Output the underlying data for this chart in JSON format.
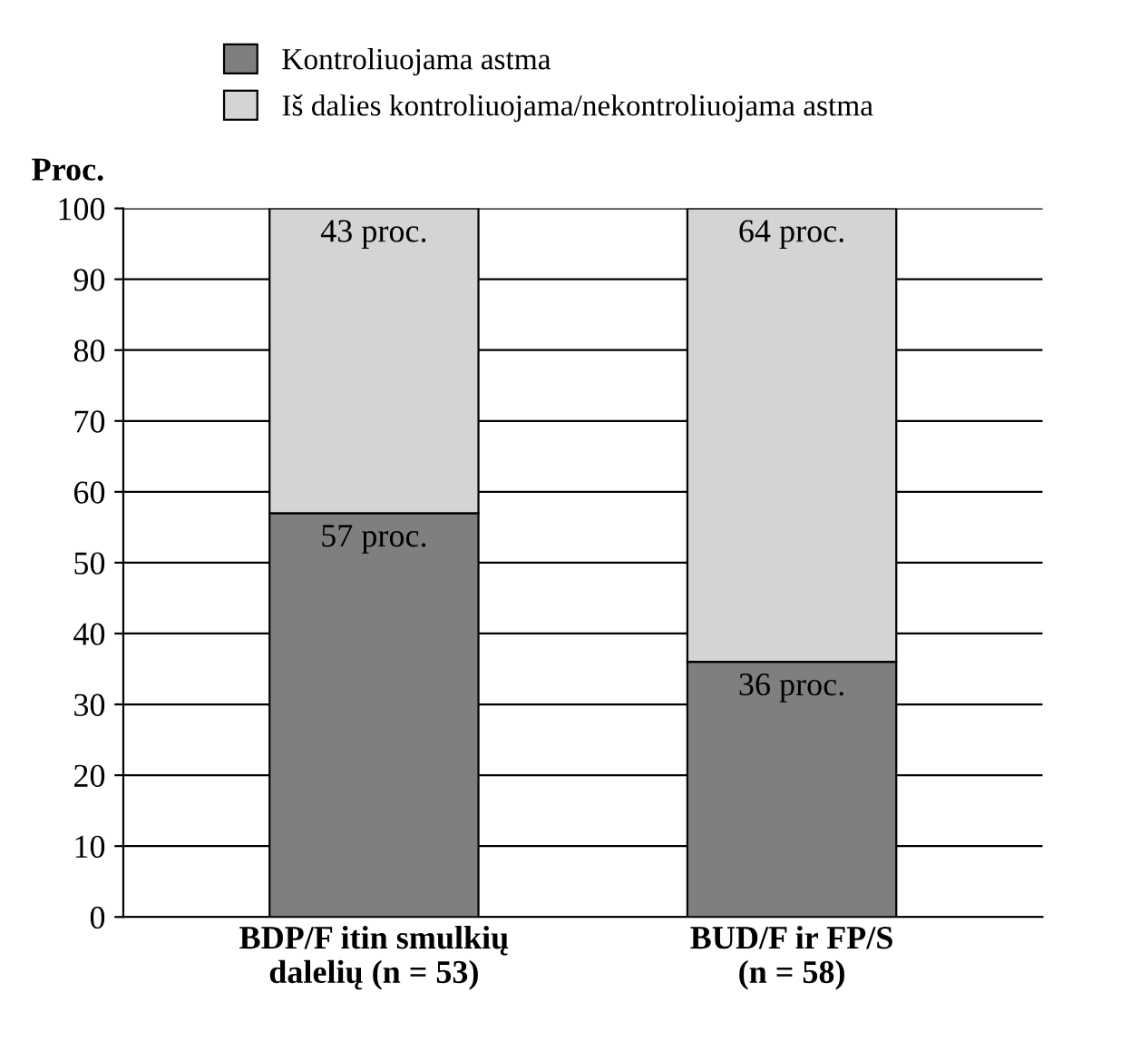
{
  "chart_data": {
    "type": "bar",
    "stacked": true,
    "ylabel": "Proc.",
    "categories": [
      "BDP/F itin smulkių\ndalelių (n = 53)",
      "BUD/F ir FP/S\n(n = 58)"
    ],
    "series": [
      {
        "name": "Kontroliuojama astma",
        "color": "#7f7f7f",
        "values": [
          57,
          36
        ],
        "value_labels": [
          "57 proc.",
          "36 proc."
        ]
      },
      {
        "name": "Iš dalies kontroliuojama/nekontroliuojama astma",
        "color": "#d4d4d4",
        "values": [
          43,
          64
        ],
        "value_labels": [
          "43 proc.",
          "64 proc."
        ]
      }
    ],
    "ylim": [
      0,
      100
    ],
    "yticks": [
      0,
      10,
      20,
      30,
      40,
      50,
      60,
      70,
      80,
      90,
      100
    ],
    "grid": "y",
    "legend": "top"
  }
}
